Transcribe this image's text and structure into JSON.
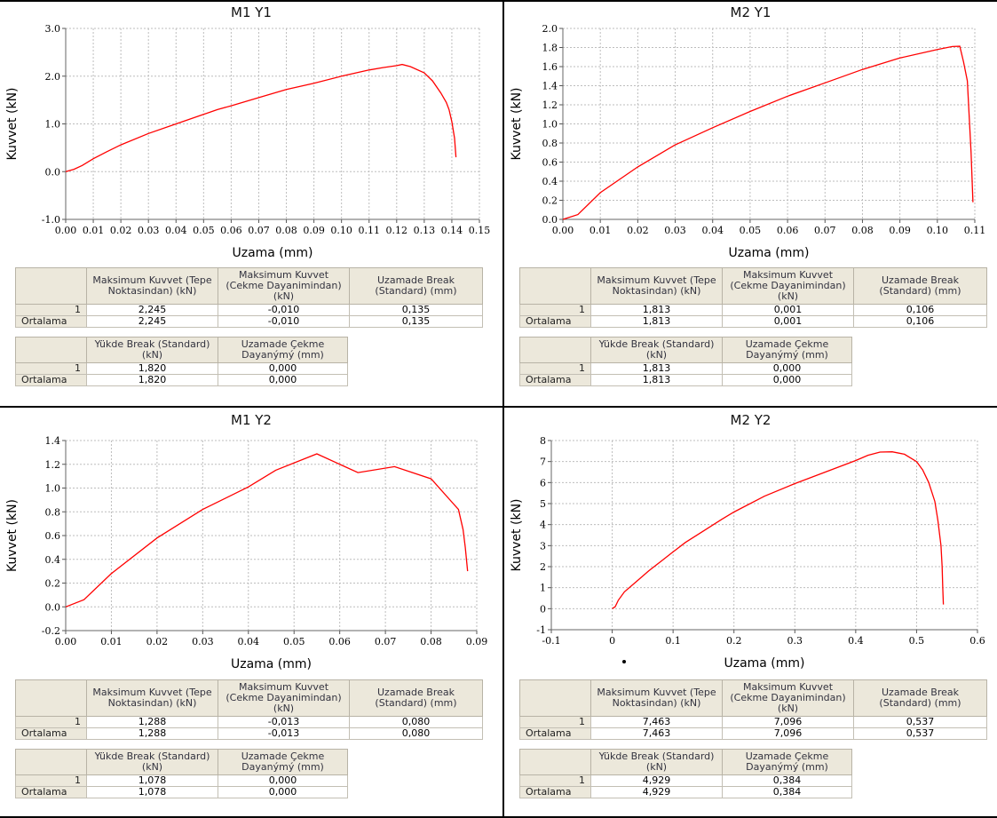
{
  "panels": [
    {
      "title": "M1 Y1",
      "table1": {
        "headers": [
          "Maksimum Kuvvet (Tepe Noktasindan) (kN)",
          "Maksimum Kuvvet (Cekme Dayanimindan) (kN)",
          "Uzamade Break (Standard) (mm)"
        ],
        "rows": [
          {
            "label": "1",
            "values": [
              "2,245",
              "-0,010",
              "0,135"
            ]
          },
          {
            "label": "Ortalama",
            "values": [
              "2,245",
              "-0,010",
              "0,135"
            ]
          }
        ]
      },
      "table2": {
        "headers": [
          "Yükde Break (Standard) (kN)",
          "Uzamade Çekme Dayanýmý (mm)"
        ],
        "rows": [
          {
            "label": "1",
            "values": [
              "1,820",
              "0,000"
            ]
          },
          {
            "label": "Ortalama",
            "values": [
              "1,820",
              "0,000"
            ]
          }
        ]
      }
    },
    {
      "title": "M2 Y1",
      "table1": {
        "headers": [
          "Maksimum Kuvvet (Tepe Noktasindan) (kN)",
          "Maksimum Kuvvet (Cekme Dayanimindan) (kN)",
          "Uzamade Break (Standard) (mm)"
        ],
        "rows": [
          {
            "label": "1",
            "values": [
              "1,813",
              "0,001",
              "0,106"
            ]
          },
          {
            "label": "Ortalama",
            "values": [
              "1,813",
              "0,001",
              "0,106"
            ]
          }
        ]
      },
      "table2": {
        "headers": [
          "Yükde Break (Standard) (kN)",
          "Uzamade Çekme Dayanýmý (mm)"
        ],
        "rows": [
          {
            "label": "1",
            "values": [
              "1,813",
              "0,000"
            ]
          },
          {
            "label": "Ortalama",
            "values": [
              "1,813",
              "0,000"
            ]
          }
        ]
      }
    },
    {
      "title": "M1 Y2",
      "table1": {
        "headers": [
          "Maksimum Kuvvet (Tepe Noktasindan) (kN)",
          "Maksimum Kuvvet (Cekme Dayanimindan) (kN)",
          "Uzamade Break (Standard) (mm)"
        ],
        "rows": [
          {
            "label": "1",
            "values": [
              "1,288",
              "-0,013",
              "0,080"
            ]
          },
          {
            "label": "Ortalama",
            "values": [
              "1,288",
              "-0,013",
              "0,080"
            ]
          }
        ]
      },
      "table2": {
        "headers": [
          "Yükde Break (Standard) (kN)",
          "Uzamade Çekme Dayanýmý (mm)"
        ],
        "rows": [
          {
            "label": "1",
            "values": [
              "1,078",
              "0,000"
            ]
          },
          {
            "label": "Ortalama",
            "values": [
              "1,078",
              "0,000"
            ]
          }
        ]
      }
    },
    {
      "title": "M2 Y2",
      "table1": {
        "headers": [
          "Maksimum Kuvvet (Tepe Noktasindan) (kN)",
          "Maksimum Kuvvet (Cekme Dayanimindan) (kN)",
          "Uzamade Break (Standard) (mm)"
        ],
        "rows": [
          {
            "label": "1",
            "values": [
              "7,463",
              "7,096",
              "0,537"
            ]
          },
          {
            "label": "Ortalama",
            "values": [
              "7,463",
              "7,096",
              "0,537"
            ]
          }
        ]
      },
      "table2": {
        "headers": [
          "Yükde Break (Standard) (kN)",
          "Uzamade Çekme Dayanýmý (mm)"
        ],
        "rows": [
          {
            "label": "1",
            "values": [
              "4,929",
              "0,384"
            ]
          },
          {
            "label": "Ortalama",
            "values": [
              "4,929",
              "0,384"
            ]
          }
        ]
      }
    }
  ],
  "colors": {
    "curve": "#ff0000",
    "grid": "#bdbdbd",
    "header_bg": "#ece8db",
    "divider": "#000000"
  },
  "chart_data": [
    {
      "type": "line",
      "title": "M1 Y1",
      "xlabel": "Uzama (mm)",
      "ylabel": "Kuvvet (kN)",
      "xlim": [
        0,
        0.15
      ],
      "ylim": [
        -1,
        3
      ],
      "xticks": [
        "0.00",
        "0.01",
        "0.02",
        "0.03",
        "0.04",
        "0.05",
        "0.06",
        "0.07",
        "0.08",
        "0.09",
        "0.10",
        "0.11",
        "0.12",
        "0.13",
        "0.14",
        "0.15"
      ],
      "yticks": [
        "-1.0",
        "0.0",
        "1.0",
        "2.0",
        "3.0"
      ],
      "grid": true,
      "series": [
        {
          "x": [
            0,
            0.003,
            0.006,
            0.01,
            0.015,
            0.02,
            0.03,
            0.04,
            0.05,
            0.055,
            0.06,
            0.07,
            0.08,
            0.09,
            0.1,
            0.11,
            0.115,
            0.12,
            0.122,
            0.125,
            0.13,
            0.133,
            0.136,
            0.138,
            0.139,
            0.14,
            0.141,
            0.1415
          ],
          "y": [
            0,
            0.05,
            0.13,
            0.27,
            0.42,
            0.56,
            0.8,
            1.0,
            1.2,
            1.3,
            1.38,
            1.55,
            1.72,
            1.85,
            2.0,
            2.13,
            2.18,
            2.22,
            2.245,
            2.2,
            2.07,
            1.9,
            1.65,
            1.45,
            1.3,
            1.05,
            0.7,
            0.3
          ]
        }
      ]
    },
    {
      "type": "line",
      "title": "M2 Y1",
      "xlabel": "Uzama (mm)",
      "ylabel": "Kuvvet (kN)",
      "xlim": [
        0,
        0.11
      ],
      "ylim": [
        0,
        2
      ],
      "xticks": [
        "0.00",
        "0.01",
        "0.02",
        "0.03",
        "0.04",
        "0.05",
        "0.06",
        "0.07",
        "0.08",
        "0.09",
        "0.10",
        "0.11"
      ],
      "yticks": [
        "0.0",
        "0.2",
        "0.4",
        "0.6",
        "0.8",
        "1.0",
        "1.2",
        "1.4",
        "1.6",
        "1.8",
        "2.0"
      ],
      "grid": true,
      "series": [
        {
          "x": [
            0,
            0.004,
            0.01,
            0.02,
            0.03,
            0.04,
            0.05,
            0.06,
            0.07,
            0.08,
            0.09,
            0.1,
            0.104,
            0.106,
            0.107,
            0.108,
            0.109,
            0.1095
          ],
          "y": [
            0,
            0.05,
            0.28,
            0.55,
            0.78,
            0.96,
            1.13,
            1.29,
            1.43,
            1.57,
            1.69,
            1.78,
            1.81,
            1.813,
            1.65,
            1.45,
            0.7,
            0.18
          ]
        }
      ]
    },
    {
      "type": "line",
      "title": "M1 Y2",
      "xlabel": "Uzama (mm)",
      "ylabel": "Kuvvet (kN)",
      "xlim": [
        0,
        0.09
      ],
      "ylim": [
        -0.2,
        1.4
      ],
      "xticks": [
        "0.00",
        "0.01",
        "0.02",
        "0.03",
        "0.04",
        "0.05",
        "0.06",
        "0.07",
        "0.08",
        "0.09"
      ],
      "yticks": [
        "-0.2",
        "0.0",
        "0.2",
        "0.4",
        "0.6",
        "0.8",
        "1.0",
        "1.2",
        "1.4"
      ],
      "grid": true,
      "series": [
        {
          "x": [
            0,
            0.004,
            0.01,
            0.02,
            0.03,
            0.04,
            0.046,
            0.055,
            0.064,
            0.072,
            0.08,
            0.086,
            0.087,
            0.0875,
            0.088
          ],
          "y": [
            0,
            0.06,
            0.28,
            0.58,
            0.82,
            1.01,
            1.15,
            1.288,
            1.13,
            1.18,
            1.078,
            0.82,
            0.65,
            0.5,
            0.3
          ]
        }
      ]
    },
    {
      "type": "line",
      "title": "M2 Y2",
      "xlabel": "Uzama (mm)",
      "ylabel": "Kuvvet (kN)",
      "xlim": [
        -0.1,
        0.6
      ],
      "ylim": [
        -1,
        8
      ],
      "xticks": [
        "-0.1",
        "0",
        "0.1",
        "0.2",
        "0.3",
        "0.4",
        "0.5",
        "0.6"
      ],
      "yticks": [
        "-1",
        "0",
        "1",
        "2",
        "3",
        "4",
        "5",
        "6",
        "7",
        "8"
      ],
      "grid": true,
      "series": [
        {
          "x": [
            0,
            0.005,
            0.01,
            0.02,
            0.04,
            0.06,
            0.08,
            0.1,
            0.12,
            0.15,
            0.18,
            0.2,
            0.25,
            0.3,
            0.35,
            0.4,
            0.42,
            0.44,
            0.46,
            0.48,
            0.5,
            0.51,
            0.52,
            0.53,
            0.535,
            0.54,
            0.542,
            0.543,
            0.544
          ],
          "y": [
            0,
            0.1,
            0.4,
            0.8,
            1.3,
            1.8,
            2.25,
            2.7,
            3.15,
            3.7,
            4.25,
            4.6,
            5.35,
            5.95,
            6.5,
            7.05,
            7.3,
            7.45,
            7.463,
            7.35,
            7.0,
            6.6,
            6.0,
            5.1,
            4.2,
            3.0,
            2.0,
            1.0,
            0.2
          ]
        }
      ]
    }
  ]
}
